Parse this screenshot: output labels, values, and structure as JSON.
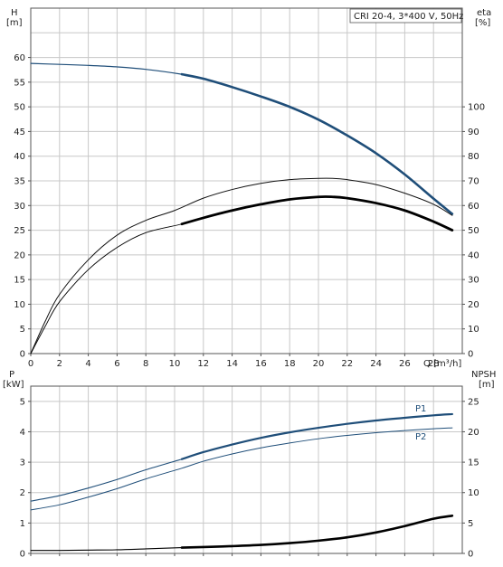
{
  "legend": "CRI 20-4, 3*400 V, 50Hz",
  "colors": {
    "accent": "#1f4e79",
    "grid": "#c8c8c8",
    "frame": "#555555",
    "text": "#222222"
  },
  "chart_data": [
    {
      "type": "line",
      "name": "performance",
      "xlabel": "Q [m³/h]",
      "xlim": [
        0,
        30
      ],
      "x_ticks": [
        0,
        2,
        4,
        6,
        8,
        10,
        12,
        14,
        16,
        18,
        20,
        22,
        24,
        26,
        28
      ],
      "x_tick_labels": [
        "0",
        "2",
        "4",
        "6",
        "8",
        "10",
        "12",
        "14",
        "16",
        "18",
        "20",
        "22",
        "24",
        "26",
        "28"
      ],
      "left_axis": {
        "label_lines": [
          "H",
          "[m]"
        ],
        "ylim": [
          0,
          70
        ],
        "ticks": [
          0,
          5,
          10,
          15,
          20,
          25,
          30,
          35,
          40,
          45,
          50,
          55,
          60
        ],
        "tick_labels": [
          "0",
          "5",
          "10",
          "15",
          "20",
          "25",
          "30",
          "35",
          "40",
          "45",
          "50",
          "55",
          "60"
        ]
      },
      "right_axis": {
        "label_lines": [
          "eta",
          "[%]"
        ],
        "ylim": [
          0,
          140
        ],
        "ticks": [
          0,
          10,
          20,
          30,
          40,
          50,
          60,
          70,
          80,
          90,
          100
        ],
        "tick_labels": [
          "0",
          "10",
          "20",
          "30",
          "40",
          "50",
          "60",
          "70",
          "80",
          "90",
          "100"
        ]
      },
      "grid": true,
      "legend_position": "top-right",
      "series": [
        {
          "key": "H",
          "axis": "left",
          "color": "#1f4e79",
          "thin_width": 1.2,
          "thick_width": 2.6,
          "x": [
            0,
            2,
            4,
            6,
            8,
            10.5,
            12,
            14,
            16,
            18,
            20,
            22,
            24,
            26,
            28,
            29.3
          ],
          "y": [
            58.8,
            58.6,
            58.4,
            58.1,
            57.6,
            56.6,
            55.7,
            54.0,
            52.1,
            50.0,
            47.4,
            44.2,
            40.6,
            36.3,
            31.4,
            28.3
          ],
          "thick_from": 10.5,
          "thick_to": 29.3
        },
        {
          "key": "eta_1",
          "axis": "right",
          "color": "#111111",
          "thin_width": 1.0,
          "thick_width": 1.0,
          "x": [
            0,
            1,
            2,
            4,
            6,
            8,
            10,
            12,
            14,
            16,
            18,
            20,
            21,
            22,
            24,
            26,
            28,
            29.3
          ],
          "y": [
            0,
            13,
            24,
            38,
            48,
            54,
            58,
            63,
            66.5,
            69,
            70.5,
            71,
            71,
            70.5,
            68.5,
            65,
            60.5,
            56
          ],
          "thick_from": 0,
          "thick_to": 0
        },
        {
          "key": "eta_2",
          "axis": "right",
          "color": "#000000",
          "thin_width": 0.9,
          "thick_width": 2.8,
          "x": [
            0,
            1,
            2,
            4,
            6,
            8,
            10.5,
            12,
            14,
            16,
            18,
            20,
            21,
            22,
            24,
            26,
            28,
            29.3
          ],
          "y": [
            0,
            11,
            21,
            34,
            43,
            49,
            52.5,
            55,
            58,
            60.5,
            62.5,
            63.5,
            63.5,
            63,
            61,
            58,
            53.5,
            50
          ],
          "thick_from": 10.5,
          "thick_to": 29.3
        }
      ]
    },
    {
      "type": "line",
      "name": "power-npsh",
      "xlim": [
        0,
        30
      ],
      "x_ticks": [
        0,
        2,
        4,
        6,
        8,
        10,
        12,
        14,
        16,
        18,
        20,
        22,
        24,
        26,
        28
      ],
      "left_axis": {
        "label_lines": [
          "P",
          "[kW]"
        ],
        "ylim": [
          0,
          5.5
        ],
        "ticks": [
          0,
          1,
          2,
          3,
          4,
          5
        ],
        "tick_labels": [
          "0",
          "1",
          "2",
          "3",
          "4",
          "5"
        ]
      },
      "right_axis": {
        "label_lines": [
          "NPSH",
          "[m]"
        ],
        "ylim": [
          0,
          27.5
        ],
        "ticks": [
          0,
          5,
          10,
          15,
          20,
          25
        ],
        "tick_labels": [
          "0",
          "5",
          "10",
          "15",
          "20",
          "25"
        ]
      },
      "grid": true,
      "series": [
        {
          "key": "P1",
          "name": "P1",
          "axis": "left",
          "color": "#1f4e79",
          "thin_width": 1.1,
          "thick_width": 2.2,
          "x": [
            0,
            2,
            4,
            6,
            8,
            10.5,
            12,
            14,
            16,
            18,
            20,
            22,
            24,
            26,
            28,
            29.3
          ],
          "y": [
            1.72,
            1.9,
            2.15,
            2.43,
            2.75,
            3.1,
            3.33,
            3.58,
            3.8,
            3.98,
            4.13,
            4.26,
            4.37,
            4.46,
            4.54,
            4.58
          ],
          "thick_from": 10.5,
          "thick_to": 29.3
        },
        {
          "key": "P2",
          "name": "P2",
          "axis": "left",
          "color": "#1f4e79",
          "thin_width": 1.0,
          "thick_width": 1.0,
          "x": [
            0,
            2,
            4,
            6,
            8,
            10.5,
            12,
            14,
            16,
            18,
            20,
            22,
            24,
            26,
            28,
            29.3
          ],
          "y": [
            1.43,
            1.6,
            1.85,
            2.13,
            2.45,
            2.8,
            3.03,
            3.27,
            3.47,
            3.63,
            3.77,
            3.88,
            3.97,
            4.04,
            4.1,
            4.13
          ],
          "thick_from": 0,
          "thick_to": 0
        },
        {
          "key": "NPSH",
          "axis": "right",
          "color": "#000000",
          "thin_width": 1.1,
          "thick_width": 2.6,
          "x": [
            0,
            2,
            4,
            6,
            8,
            10.5,
            12,
            14,
            16,
            18,
            20,
            22,
            24,
            26,
            28,
            29.3
          ],
          "y": [
            0.5,
            0.5,
            0.55,
            0.6,
            0.75,
            0.95,
            1.05,
            1.2,
            1.4,
            1.7,
            2.1,
            2.65,
            3.45,
            4.5,
            5.7,
            6.2
          ],
          "thick_from": 10.5,
          "thick_to": 29.3
        }
      ]
    }
  ]
}
